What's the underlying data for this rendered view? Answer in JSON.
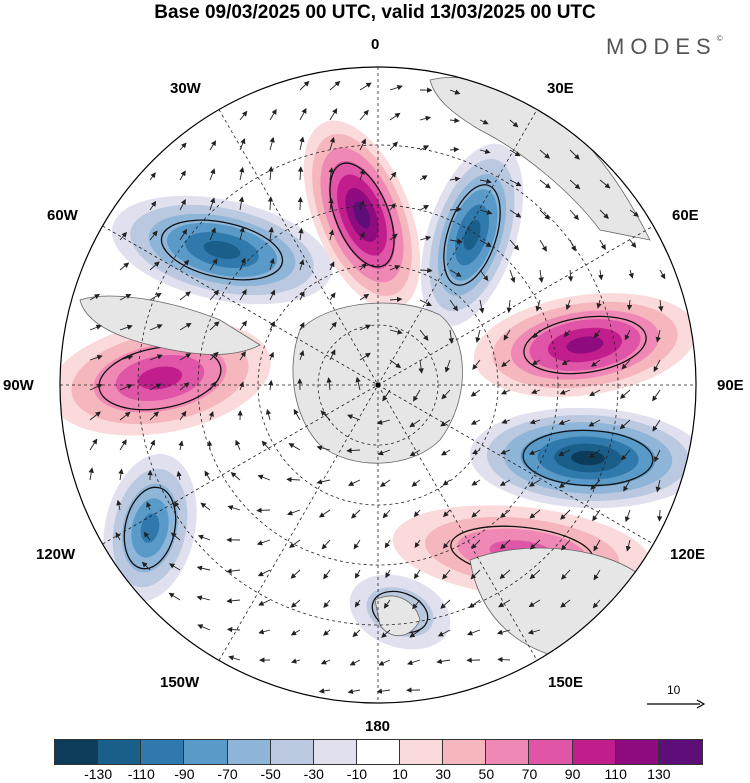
{
  "title": "Base 09/03/2025 00 UTC, valid 13/03/2025 00 UTC",
  "logo": "MODES",
  "logo_mark": "©",
  "map": {
    "projection": "south polar stereographic",
    "longitude_labels": {
      "top": "0",
      "upper_right": "30E",
      "right_upper": "60E",
      "right": "90E",
      "right_lower": "120E",
      "lower_right": "150E",
      "bottom": "180",
      "lower_left": "150W",
      "left_lower": "120W",
      "left": "90W",
      "left_upper": "60W",
      "upper_left": "30W"
    },
    "anomaly_centers": [
      {
        "name": "sector-0",
        "value": 125
      },
      {
        "name": "sector-15E",
        "value": -100
      },
      {
        "name": "sector-50W",
        "value": -100
      },
      {
        "name": "sector-75E",
        "value": 110
      },
      {
        "name": "sector-105E",
        "value": -125
      },
      {
        "name": "sector-95W",
        "value": 80
      },
      {
        "name": "sector-130E",
        "value": 70
      },
      {
        "name": "sector-140W",
        "value": -80
      },
      {
        "name": "sector-165E",
        "value": -45
      }
    ],
    "reference_vector": "10",
    "colors": {
      "land": "#e6e6e6",
      "coast": "#666666"
    }
  },
  "colorbar": {
    "colors": [
      "#0d3b5a",
      "#1a5e8a",
      "#2f79ad",
      "#5a9ac8",
      "#8fb5d8",
      "#bac9df",
      "#e1e0ef",
      "#ffffff",
      "#fadadb",
      "#f5b6bd",
      "#ef88b4",
      "#e055a7",
      "#c21d8d",
      "#8e0c80",
      "#5d0e78"
    ],
    "ticks": [
      "-130",
      "-110",
      "-90",
      "-70",
      "-50",
      "-30",
      "-10",
      "10",
      "30",
      "50",
      "70",
      "90",
      "110",
      "130"
    ]
  }
}
